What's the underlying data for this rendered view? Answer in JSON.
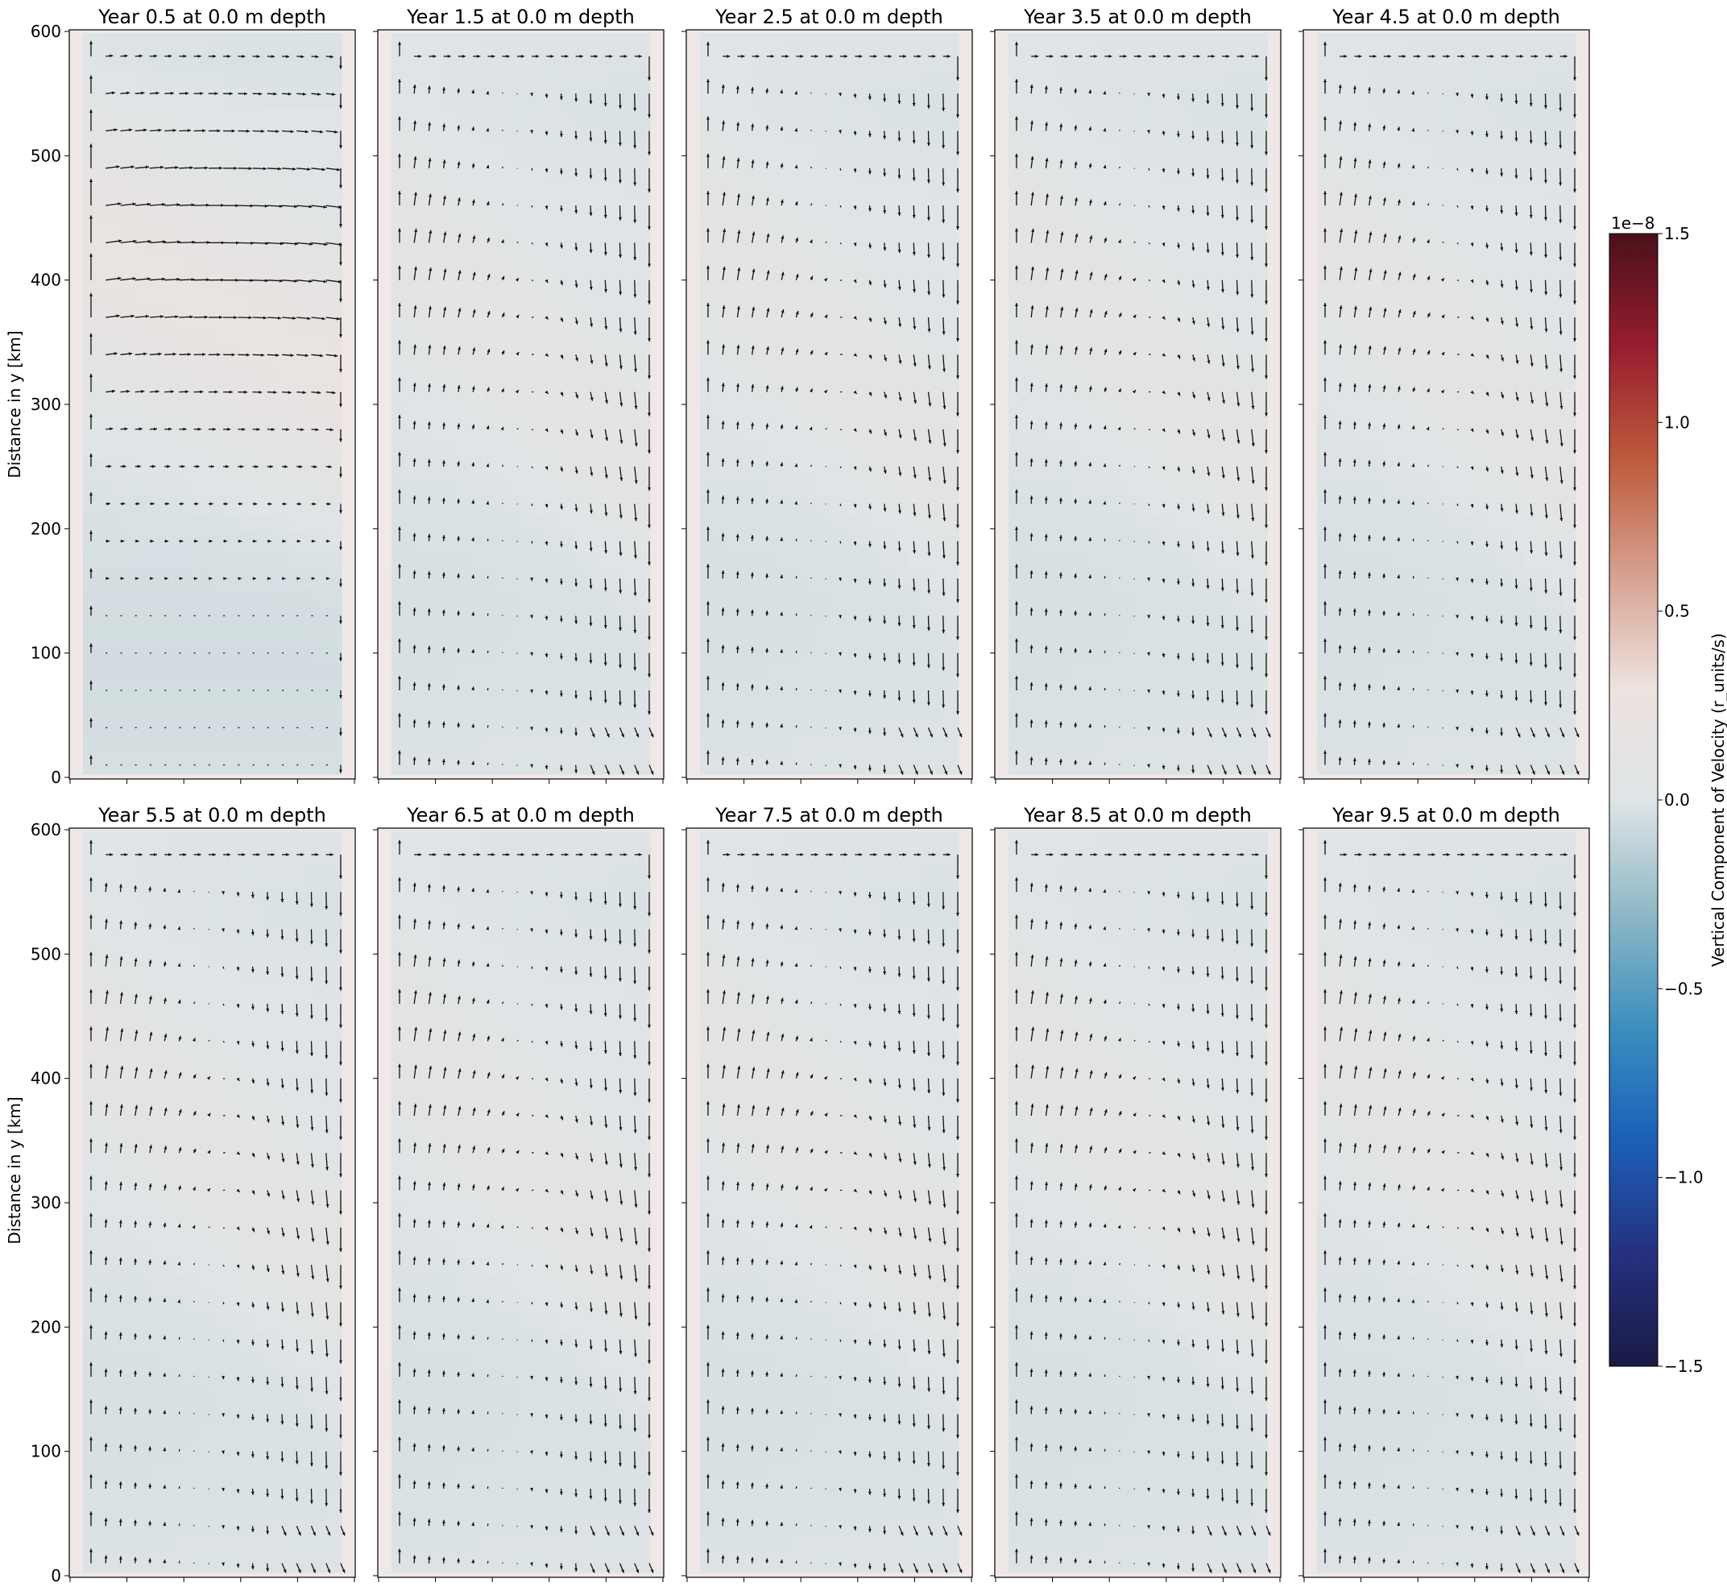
{
  "figure": {
    "ylabel": "Distance in y [km]",
    "colorbar": {
      "label": "Vertical Component of Velocity (r_units/s)",
      "exponent_label": "1e−8",
      "range": [
        -1.5,
        1.5
      ],
      "ticks": [
        -1.5,
        -1.0,
        -0.5,
        0.0,
        0.5,
        1.0,
        1.5
      ],
      "tick_labels": [
        "−1.5",
        "−1.0",
        "−0.5",
        "0.0",
        "0.5",
        "1.0",
        "1.5"
      ],
      "colors": [
        "#1a1a45",
        "#25317f",
        "#1b60b8",
        "#3c8fbf",
        "#8fb8c6",
        "#dfe4e6",
        "#ede2df",
        "#d6a08e",
        "#be5a3c",
        "#981d2e",
        "#4a101a"
      ]
    }
  },
  "chart_data": [
    {
      "type": "heatmap",
      "title": "Year 0.5 at 0.0 m depth",
      "ylabel": "Distance in y [km]",
      "ylim": [
        0,
        600
      ],
      "yticks": [
        0,
        100,
        200,
        300,
        400,
        500,
        600
      ],
      "field_peak_value": 0.22,
      "quiver": "vector field"
    },
    {
      "type": "heatmap",
      "title": "Year 1.5 at 0.0 m depth",
      "ylim": [
        0,
        600
      ],
      "field_peak_value": 0.13,
      "quiver": "vector field"
    },
    {
      "type": "heatmap",
      "title": "Year 2.5 at 0.0 m depth",
      "ylim": [
        0,
        600
      ],
      "field_peak_value": 0.12,
      "quiver": "vector field"
    },
    {
      "type": "heatmap",
      "title": "Year 3.5 at 0.0 m depth",
      "ylim": [
        0,
        600
      ],
      "field_peak_value": 0.12,
      "quiver": "vector field"
    },
    {
      "type": "heatmap",
      "title": "Year 4.5 at 0.0 m depth",
      "ylim": [
        0,
        600
      ],
      "field_peak_value": 0.12,
      "quiver": "vector field"
    },
    {
      "type": "heatmap",
      "title": "Year 5.5 at 0.0 m depth",
      "ylabel": "Distance in y [km]",
      "ylim": [
        0,
        600
      ],
      "yticks": [
        0,
        100,
        200,
        300,
        400,
        500,
        600
      ],
      "field_peak_value": 0.12,
      "quiver": "vector field"
    },
    {
      "type": "heatmap",
      "title": "Year 6.5 at 0.0 m depth",
      "ylim": [
        0,
        600
      ],
      "field_peak_value": 0.12,
      "quiver": "vector field"
    },
    {
      "type": "heatmap",
      "title": "Year 7.5 at 0.0 m depth",
      "ylim": [
        0,
        600
      ],
      "field_peak_value": 0.12,
      "quiver": "vector field"
    },
    {
      "type": "heatmap",
      "title": "Year 8.5 at 0.0 m depth",
      "ylim": [
        0,
        600
      ],
      "field_peak_value": 0.12,
      "quiver": "vector field"
    },
    {
      "type": "heatmap",
      "title": "Year 9.5 at 0.0 m depth",
      "ylim": [
        0,
        600
      ],
      "field_peak_value": 0.12,
      "quiver": "vector field"
    }
  ]
}
